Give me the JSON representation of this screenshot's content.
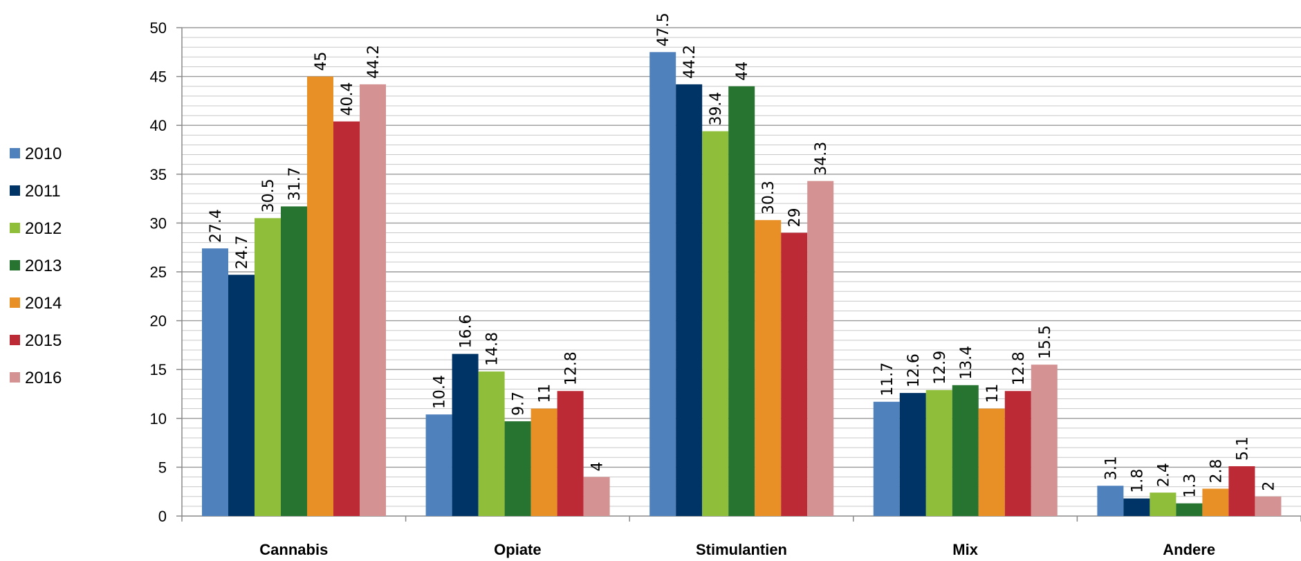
{
  "chart_data": {
    "type": "bar",
    "title": "",
    "xlabel": "",
    "ylabel": "",
    "ylim": [
      0,
      50
    ],
    "yticks": [
      0,
      5,
      10,
      15,
      20,
      25,
      30,
      35,
      40,
      45,
      50
    ],
    "grid": true,
    "legend_position": "left",
    "categories": [
      "Cannabis",
      "Opiate",
      "Stimulantien",
      "Mix",
      "Andere"
    ],
    "series": [
      {
        "name": "2010",
        "color": "#4F81BD",
        "values": [
          27.4,
          10.4,
          47.5,
          11.7,
          3.1
        ],
        "labels": [
          "27.4",
          "10.4",
          "47.5",
          "11.7",
          "3.1"
        ]
      },
      {
        "name": "2011",
        "color": "#003366",
        "values": [
          24.7,
          16.6,
          44.2,
          12.6,
          1.8
        ],
        "labels": [
          "24.7",
          "16.6",
          "44.2",
          "12.6",
          "1.8"
        ]
      },
      {
        "name": "2012",
        "color": "#8FBE3A",
        "values": [
          30.5,
          14.8,
          39.4,
          12.9,
          2.4
        ],
        "labels": [
          "30.5",
          "14.8",
          "39.4",
          "12.9",
          "2.4"
        ]
      },
      {
        "name": "2013",
        "color": "#267430",
        "values": [
          31.7,
          9.7,
          44,
          13.4,
          1.3
        ],
        "labels": [
          "31.7",
          "9.7",
          "44",
          "13.4",
          "1.3"
        ]
      },
      {
        "name": "2014",
        "color": "#E88F26",
        "values": [
          45,
          11,
          30.3,
          11,
          2.8
        ],
        "labels": [
          "45",
          "11",
          "30.3",
          "11",
          "2.8"
        ]
      },
      {
        "name": "2015",
        "color": "#BB2A35",
        "values": [
          40.4,
          12.8,
          29,
          12.8,
          5.1
        ],
        "labels": [
          "40.4",
          "12.8",
          "29",
          "12.8",
          "5.1"
        ]
      },
      {
        "name": "2016",
        "color": "#D49293",
        "values": [
          44.2,
          4,
          34.3,
          15.5,
          2
        ],
        "labels": [
          "44.2",
          "4",
          "34.3",
          "15.5",
          "2"
        ]
      }
    ]
  }
}
